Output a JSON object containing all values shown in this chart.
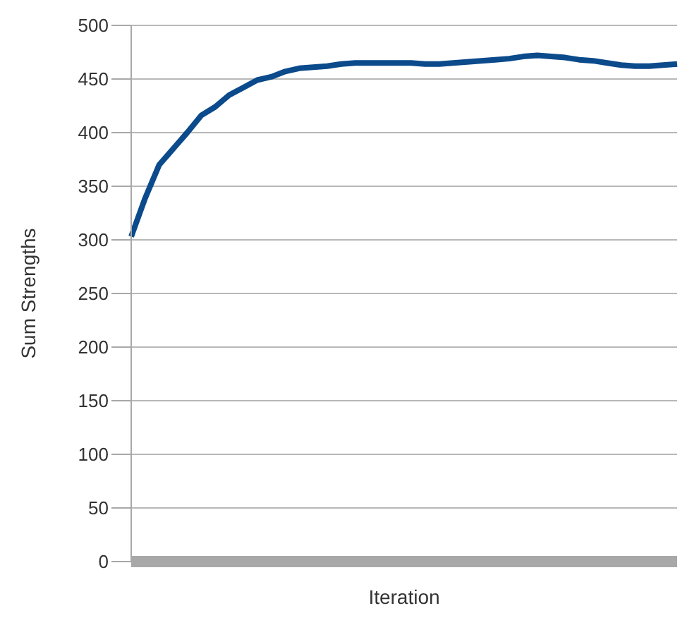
{
  "chart_data": {
    "type": "line",
    "xlabel": "Iteration",
    "ylabel": "Sum Strengths",
    "categories": [
      null,
      null,
      null,
      null,
      null,
      null,
      null,
      null,
      null,
      null,
      null,
      null,
      null,
      null,
      null,
      null,
      null,
      null,
      null,
      null,
      null,
      null,
      null,
      null,
      null,
      null,
      null,
      null,
      null,
      null,
      null,
      null,
      null,
      null,
      null,
      null,
      null,
      null,
      null,
      null
    ],
    "series": [
      {
        "color": "#0b4a8b",
        "values": [
          303,
          339,
          370,
          385,
          400,
          416,
          424,
          435,
          442,
          449,
          452,
          457,
          460,
          461,
          462,
          464,
          465,
          465,
          465,
          465,
          465,
          464,
          464,
          465,
          466,
          467,
          468,
          469,
          471,
          472,
          471,
          470,
          468,
          467,
          465,
          463,
          462,
          462,
          463,
          464
        ]
      }
    ],
    "ylim": [
      0,
      500
    ],
    "yticks": [
      0,
      50,
      100,
      150,
      200,
      250,
      300,
      350,
      400,
      450,
      500
    ],
    "grid": "y",
    "tick_labels": "y"
  }
}
